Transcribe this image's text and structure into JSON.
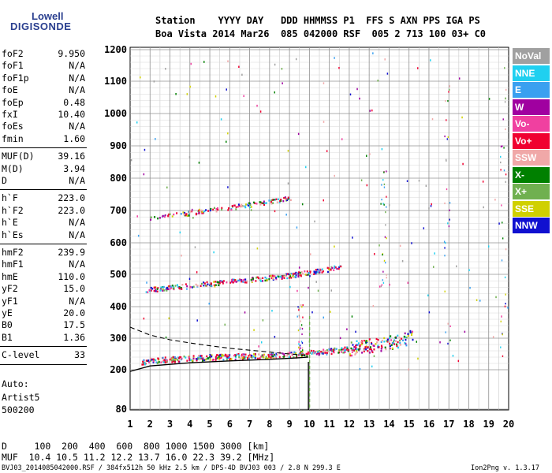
{
  "logo": {
    "line1": "Lowell",
    "line2": "DIGISONDE"
  },
  "header": {
    "line1": "Station    YYYY DAY   DDD HHMMSS P1  FFS S AXN PPS IGA PS",
    "line2": "Boa Vista 2014 Mar26  085 042000 RSF  005 2 713 100 03+ C0"
  },
  "params": {
    "group1": [
      {
        "name": "foF2",
        "value": "9.950"
      },
      {
        "name": "foF1",
        "value": "N/A"
      },
      {
        "name": "foF1p",
        "value": "N/A"
      },
      {
        "name": "foE",
        "value": "N/A"
      },
      {
        "name": "foEp",
        "value": "0.48"
      },
      {
        "name": "fxI",
        "value": "10.40"
      },
      {
        "name": "foEs",
        "value": "N/A"
      },
      {
        "name": "fmin",
        "value": "1.60"
      }
    ],
    "group2": [
      {
        "name": "MUF(D)",
        "value": "39.16"
      },
      {
        "name": "M(D)",
        "value": "3.94"
      },
      {
        "name": "D",
        "value": "N/A"
      }
    ],
    "group3": [
      {
        "name": "h`F",
        "value": "223.0"
      },
      {
        "name": "h`F2",
        "value": "223.0"
      },
      {
        "name": "h`E",
        "value": "N/A"
      },
      {
        "name": "h`Es",
        "value": "N/A"
      }
    ],
    "group4": [
      {
        "name": "hmF2",
        "value": "239.9"
      },
      {
        "name": "hmF1",
        "value": "N/A"
      },
      {
        "name": "hmE",
        "value": "110.0"
      },
      {
        "name": "yF2",
        "value": "15.0"
      },
      {
        "name": "yF1",
        "value": "N/A"
      },
      {
        "name": "yE",
        "value": "20.0"
      },
      {
        "name": "B0",
        "value": "17.5"
      },
      {
        "name": "B1",
        "value": "1.36"
      }
    ],
    "group5": [
      {
        "name": "C-level",
        "value": "33"
      }
    ]
  },
  "autoscaling": {
    "line1": "Auto:",
    "line2": "Artist5",
    "line3": "500200"
  },
  "legend": [
    {
      "label": "NoVal",
      "color": "#a0a0a0"
    },
    {
      "label": "NNE",
      "color": "#20d0f0"
    },
    {
      "label": "E",
      "color": "#3aa0f0"
    },
    {
      "label": "W",
      "color": "#a000a0"
    },
    {
      "label": "Vo-",
      "color": "#f040a0"
    },
    {
      "label": "Vo+",
      "color": "#f00030"
    },
    {
      "label": "SSW",
      "color": "#f0a8a8"
    },
    {
      "label": "X-",
      "color": "#008000"
    },
    {
      "label": "X+",
      "color": "#70b050"
    },
    {
      "label": "SSE",
      "color": "#d0d000"
    },
    {
      "label": "NNW",
      "color": "#1010d0"
    }
  ],
  "footer": {
    "distance_line": "D     100  200  400  600  800 1000 1500 3000 [km]",
    "muf_line": "MUF  10.4 10.5 11.2 12.2 13.7 16.0 22.3 39.2 [MHz]",
    "file_line": "BVJ03_2014085042000.RSF / 384fx512h 50 kHz 2.5 km / DPS-4D BVJ03 003 / 2.8 N 299.3 E",
    "version": "Ion2Png v. 1.3.17"
  },
  "chart_data": {
    "type": "scatter",
    "xlabel": "",
    "ylabel": "",
    "xlim": [
      1,
      20
    ],
    "ylim": [
      80,
      1200
    ],
    "x_ticks": [
      "1",
      "2",
      "3",
      "4",
      "5",
      "6",
      "7",
      "8",
      "9",
      "10",
      "11",
      "12",
      "13",
      "14",
      "15",
      "16",
      "17",
      "18",
      "19",
      "20"
    ],
    "y_ticks": [
      "80",
      "200",
      "300",
      "400",
      "500",
      "600",
      "700",
      "800",
      "900",
      "1000",
      "1100",
      "1200"
    ],
    "grid": true,
    "foF2_marker": 9.95,
    "traces": [
      {
        "name": "F2 O-trace",
        "x": [
          1.6,
          3,
          5,
          7,
          8.5,
          9.5,
          10,
          11,
          12,
          13,
          14,
          14.8,
          15.2
        ],
        "y": [
          225,
          232,
          238,
          242,
          245,
          248,
          252,
          258,
          265,
          275,
          285,
          295,
          310
        ]
      },
      {
        "name": "2nd hop",
        "x": [
          1.8,
          3,
          5,
          7,
          9,
          10,
          11,
          11.6
        ],
        "y": [
          450,
          458,
          470,
          482,
          495,
          505,
          515,
          525
        ]
      },
      {
        "name": "3rd hop",
        "x": [
          2.0,
          4,
          6,
          8,
          9.1
        ],
        "y": [
          675,
          690,
          708,
          725,
          738
        ]
      }
    ],
    "profile_line": {
      "x": [
        1,
        2,
        4,
        6,
        8,
        9.5,
        9.95
      ],
      "y": [
        195,
        212,
        222,
        228,
        233,
        238,
        240
      ]
    },
    "profile_dashed": {
      "x": [
        1,
        2,
        3,
        4,
        5,
        6,
        7,
        8,
        9,
        9.95
      ],
      "y": [
        335,
        310,
        295,
        285,
        276,
        268,
        262,
        256,
        250,
        245
      ]
    }
  }
}
